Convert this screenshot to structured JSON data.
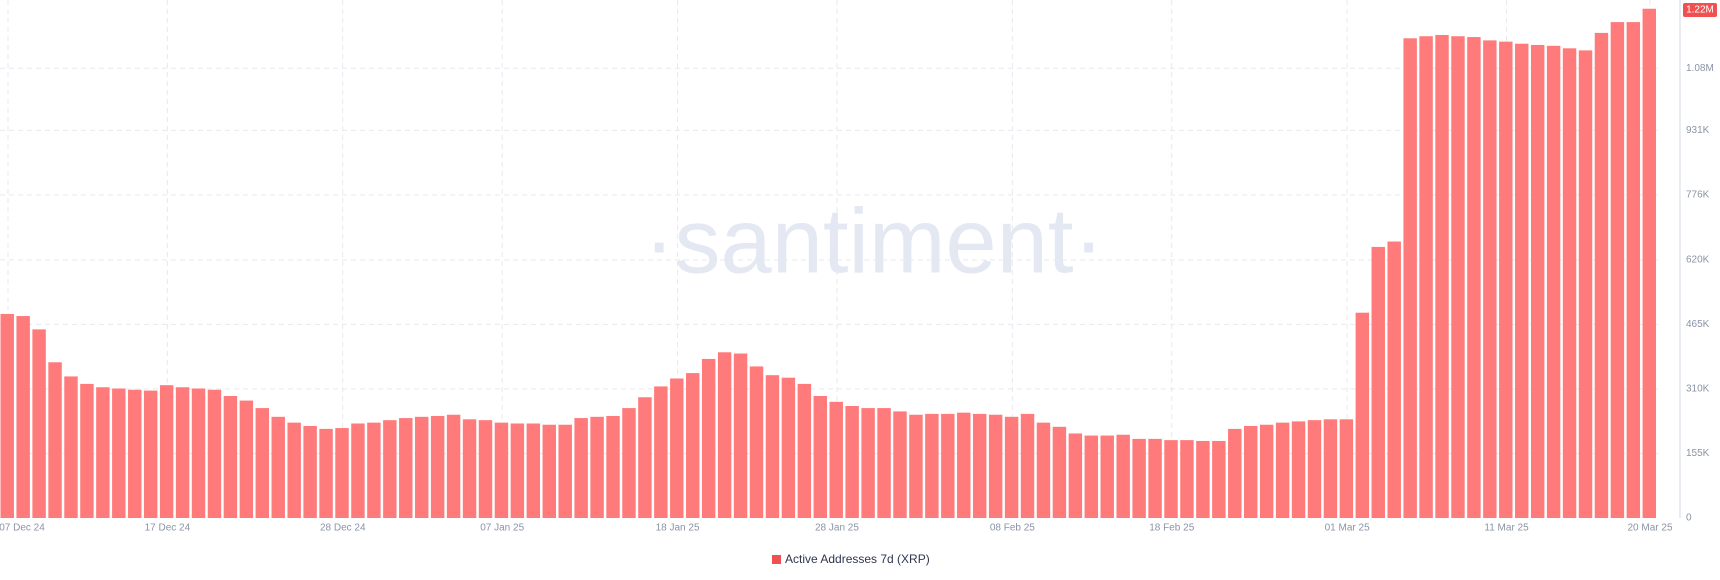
{
  "chart_data": {
    "type": "bar",
    "watermark": "·santiment·",
    "categories": [
      "07 Dec 24",
      null,
      null,
      null,
      null,
      null,
      null,
      null,
      null,
      null,
      "17 Dec 24",
      null,
      null,
      null,
      null,
      null,
      null,
      null,
      null,
      null,
      null,
      "28 Dec 24",
      null,
      null,
      null,
      null,
      null,
      null,
      null,
      null,
      null,
      "07 Jan 25",
      null,
      null,
      null,
      null,
      null,
      null,
      null,
      null,
      null,
      null,
      "18 Jan 25",
      null,
      null,
      null,
      null,
      null,
      null,
      null,
      null,
      null,
      "28 Jan 25",
      null,
      null,
      null,
      null,
      null,
      null,
      null,
      null,
      null,
      null,
      "08 Feb 25",
      null,
      null,
      null,
      null,
      null,
      null,
      null,
      null,
      null,
      "18 Feb 25",
      null,
      null,
      null,
      null,
      null,
      null,
      null,
      null,
      null,
      null,
      "01 Mar 25",
      null,
      null,
      null,
      null,
      null,
      null,
      null,
      null,
      null,
      "11 Mar 25",
      null,
      null,
      null,
      null,
      null,
      null,
      null,
      null,
      "20 Mar 25"
    ],
    "series": [
      {
        "name": "Active Addresses 7d (XRP)",
        "color": "#ff7b7b",
        "legend_color": "#f0504f",
        "values": [
          490000,
          485000,
          453000,
          374000,
          340000,
          322000,
          314000,
          311000,
          308000,
          306000,
          319000,
          314000,
          311000,
          308000,
          293000,
          282000,
          264000,
          243000,
          229000,
          221000,
          214000,
          216000,
          227000,
          229000,
          235000,
          240000,
          243000,
          245000,
          248000,
          237000,
          235000,
          229000,
          227000,
          227000,
          224000,
          224000,
          240000,
          243000,
          245000,
          264000,
          290000,
          316000,
          335000,
          348000,
          382000,
          398000,
          395000,
          364000,
          343000,
          337000,
          322000,
          293000,
          279000,
          269000,
          264000,
          264000,
          256000,
          248000,
          250000,
          250000,
          253000,
          250000,
          248000,
          243000,
          250000,
          229000,
          219000,
          203000,
          198000,
          198000,
          200000,
          190000,
          190000,
          187000,
          187000,
          185000,
          185000,
          214000,
          221000,
          224000,
          229000,
          232000,
          235000,
          237000,
          237000,
          493000,
          651000,
          664000,
          1152000,
          1157000,
          1160000,
          1157000,
          1155000,
          1147000,
          1144000,
          1139000,
          1136000,
          1134000,
          1128000,
          1123000,
          1165000,
          1191000,
          1191000,
          1223000
        ]
      }
    ],
    "ylim": [
      0,
      1244000
    ],
    "yticks": [
      0,
      {
        "value": 155000,
        "label": "155K"
      },
      {
        "value": 310000,
        "label": "310K"
      },
      {
        "value": 465000,
        "label": "465K"
      },
      {
        "value": 620000,
        "label": "620K"
      },
      {
        "value": 776000,
        "label": "776K"
      },
      {
        "value": 931000,
        "label": "931K"
      },
      {
        "value": 1080000,
        "label": "1.08M"
      }
    ],
    "last_value": {
      "value": 1220000,
      "label": "1.22M"
    },
    "grid": true
  }
}
